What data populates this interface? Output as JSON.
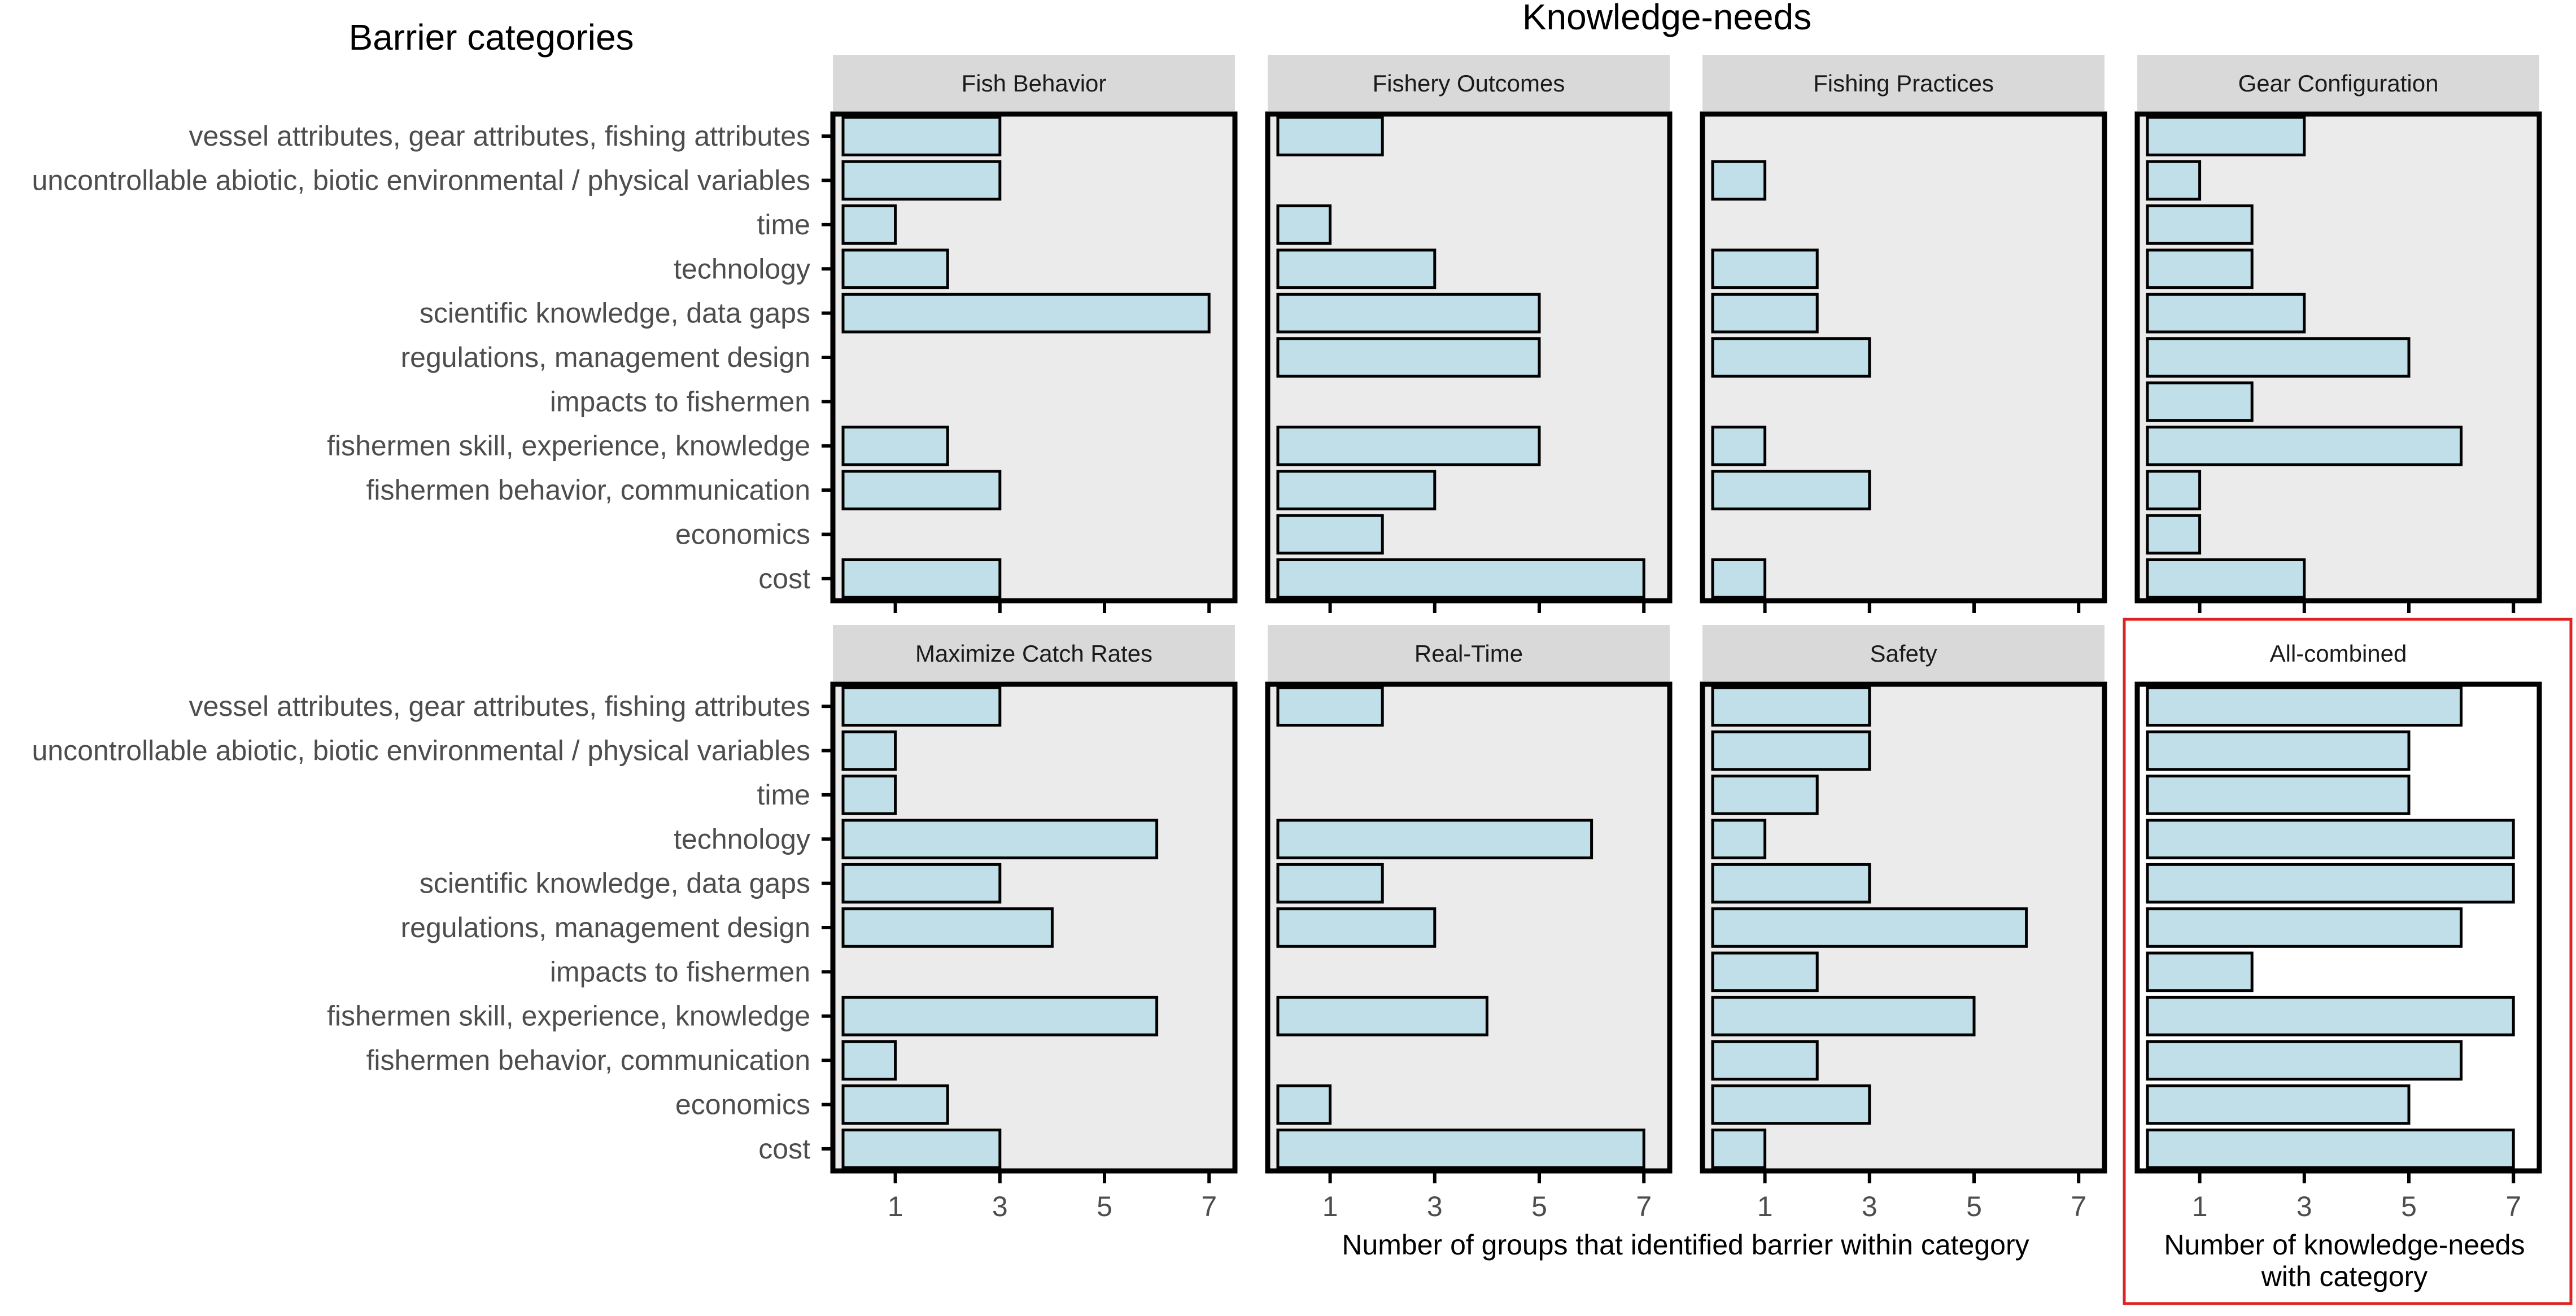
{
  "chart_data": {
    "type": "bar",
    "orientation": "horizontal",
    "title": "Knowledge-needs",
    "ylabel": "Barrier categories",
    "xlabel": "Number of groups that identified barrier within category",
    "xlabel_combined": [
      "Number of knowledge-needs",
      "with category"
    ],
    "xlim": [
      0,
      7.3
    ],
    "xticks": [
      1,
      3,
      5,
      7
    ],
    "categories": [
      "vessel attributes, gear attributes, fishing attributes",
      "uncontrollable abiotic, biotic environmental / physical variables",
      "time",
      "technology",
      "scientific knowledge, data gaps",
      "regulations, management design",
      "impacts to fishermen",
      "fishermen skill, experience, knowledge",
      "fishermen behavior, communication",
      "economics",
      "cost"
    ],
    "series": [
      {
        "name": "Fish Behavior",
        "values": [
          3,
          3,
          1,
          2,
          7,
          0,
          0,
          2,
          3,
          0,
          3
        ]
      },
      {
        "name": "Fishery Outcomes",
        "values": [
          2,
          0,
          1,
          3,
          5,
          5,
          0,
          5,
          3,
          2,
          7
        ]
      },
      {
        "name": "Fishing Practices",
        "values": [
          0,
          1,
          0,
          2,
          2,
          3,
          0,
          1,
          3,
          0,
          1
        ]
      },
      {
        "name": "Gear Configuration",
        "values": [
          3,
          1,
          2,
          2,
          3,
          5,
          2,
          6,
          1,
          1,
          3
        ]
      },
      {
        "name": "Maximize Catch Rates",
        "values": [
          3,
          1,
          1,
          6,
          3,
          4,
          0,
          6,
          1,
          2,
          3
        ]
      },
      {
        "name": "Real-Time",
        "values": [
          2,
          0,
          0,
          6,
          2,
          3,
          0,
          4,
          0,
          1,
          7
        ]
      },
      {
        "name": "Safety",
        "values": [
          3,
          3,
          2,
          1,
          3,
          6,
          2,
          5,
          2,
          3,
          1
        ]
      },
      {
        "name": "All-combined",
        "values": [
          6,
          5,
          5,
          7,
          7,
          6,
          2,
          7,
          6,
          5,
          7
        ]
      }
    ],
    "bar_color": "#c0dfe8",
    "panel_background": "#ebebeb",
    "strip_background": "#d9d9d9",
    "highlight_color": "#dd2222"
  }
}
